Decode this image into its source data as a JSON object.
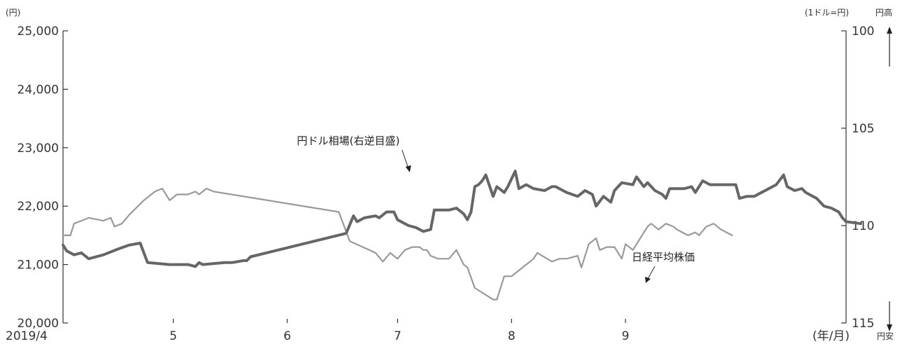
{
  "chart_data": {
    "type": "line",
    "left_unit": "(円)",
    "right_unit": "(1ドル=円)",
    "right_top_note": "円高",
    "right_bottom_note": "円安",
    "x_axis_note": "(年/月)",
    "left_axis": {
      "ylim": [
        20000,
        25000
      ],
      "ticks": [
        20000,
        21000,
        22000,
        23000,
        24000,
        25000
      ],
      "tick_labels": [
        "20,000",
        "21,000",
        "22,000",
        "23,000",
        "24,000",
        "25,000"
      ]
    },
    "right_axis": {
      "inverted": true,
      "ylim": [
        100,
        115
      ],
      "ticks": [
        100,
        105,
        110,
        115
      ],
      "tick_labels": [
        "100",
        "105",
        "110",
        "115"
      ]
    },
    "x_axis": {
      "tick_labels": [
        "2019/4",
        "5",
        "6",
        "7",
        "8",
        "9"
      ],
      "tick_dates": [
        "2019-04-01",
        "2019-05-01",
        "2019-06-01",
        "2019-07-01",
        "2019-08-01",
        "2019-09-01"
      ],
      "range": [
        "2019-04-01",
        "2019-10-31"
      ]
    },
    "series": [
      {
        "name": "円ドル相場(右逆目盛)",
        "axis": "right",
        "color": "#666666",
        "points": [
          [
            "2019-04-01",
            111.0
          ],
          [
            "2019-04-02",
            111.3
          ],
          [
            "2019-04-04",
            111.5
          ],
          [
            "2019-04-06",
            111.4
          ],
          [
            "2019-04-08",
            111.7
          ],
          [
            "2019-04-12",
            111.5
          ],
          [
            "2019-04-16",
            111.2
          ],
          [
            "2019-04-19",
            111.0
          ],
          [
            "2019-04-22",
            110.9
          ],
          [
            "2019-04-24",
            111.9
          ],
          [
            "2019-04-30",
            112.0
          ],
          [
            "2019-05-05",
            112.0
          ],
          [
            "2019-05-07",
            112.1
          ],
          [
            "2019-05-08",
            111.9
          ],
          [
            "2019-05-09",
            112.0
          ],
          [
            "2019-05-15",
            111.9
          ],
          [
            "2019-05-17",
            111.9
          ],
          [
            "2019-05-20",
            111.8
          ],
          [
            "2019-05-21",
            111.8
          ],
          [
            "2019-05-22",
            111.6
          ],
          [
            "2019-06-17",
            110.4
          ],
          [
            "2019-06-19",
            109.5
          ],
          [
            "2019-06-20",
            109.8
          ],
          [
            "2019-06-22",
            109.6
          ],
          [
            "2019-06-25",
            109.5
          ],
          [
            "2019-06-26",
            109.6
          ],
          [
            "2019-06-28",
            109.3
          ],
          [
            "2019-06-30",
            109.3
          ],
          [
            "2019-07-01",
            109.7
          ],
          [
            "2019-07-04",
            110.0
          ],
          [
            "2019-07-06",
            110.1
          ],
          [
            "2019-07-08",
            110.3
          ],
          [
            "2019-07-10",
            110.2
          ],
          [
            "2019-07-11",
            109.2
          ],
          [
            "2019-07-15",
            109.2
          ],
          [
            "2019-07-17",
            109.1
          ],
          [
            "2019-07-19",
            109.4
          ],
          [
            "2019-07-20",
            109.7
          ],
          [
            "2019-07-21",
            109.3
          ],
          [
            "2019-07-22",
            108.0
          ],
          [
            "2019-07-23",
            107.9
          ],
          [
            "2019-07-24",
            107.7
          ],
          [
            "2019-07-25",
            107.4
          ],
          [
            "2019-07-27",
            108.5
          ],
          [
            "2019-07-28",
            108.0
          ],
          [
            "2019-07-30",
            108.3
          ],
          [
            "2019-07-31",
            108.0
          ],
          [
            "2019-08-02",
            107.2
          ],
          [
            "2019-08-03",
            108.1
          ],
          [
            "2019-08-05",
            107.9
          ],
          [
            "2019-08-07",
            108.1
          ],
          [
            "2019-08-10",
            108.2
          ],
          [
            "2019-08-12",
            108.0
          ],
          [
            "2019-08-13",
            108.0
          ],
          [
            "2019-08-15",
            108.2
          ],
          [
            "2019-08-16",
            108.3
          ],
          [
            "2019-08-19",
            108.5
          ],
          [
            "2019-08-21",
            108.2
          ],
          [
            "2019-08-23",
            108.4
          ],
          [
            "2019-08-24",
            109.0
          ],
          [
            "2019-08-26",
            108.5
          ],
          [
            "2019-08-28",
            108.8
          ],
          [
            "2019-08-29",
            108.2
          ],
          [
            "2019-08-31",
            107.8
          ],
          [
            "2019-09-03",
            107.9
          ],
          [
            "2019-09-04",
            107.5
          ],
          [
            "2019-09-06",
            108.0
          ],
          [
            "2019-09-07",
            107.8
          ],
          [
            "2019-09-09",
            108.2
          ],
          [
            "2019-09-11",
            108.4
          ],
          [
            "2019-09-12",
            108.6
          ],
          [
            "2019-09-13",
            108.1
          ],
          [
            "2019-09-14",
            108.1
          ],
          [
            "2019-09-17",
            108.1
          ],
          [
            "2019-09-19",
            108.0
          ],
          [
            "2019-09-20",
            108.3
          ],
          [
            "2019-09-22",
            107.7
          ],
          [
            "2019-09-24",
            107.9
          ],
          [
            "2019-09-26",
            107.9
          ],
          [
            "2019-09-28",
            107.9
          ],
          [
            "2019-10-01",
            107.9
          ],
          [
            "2019-10-02",
            108.6
          ],
          [
            "2019-10-04",
            108.5
          ],
          [
            "2019-10-06",
            108.5
          ],
          [
            "2019-10-08",
            108.3
          ],
          [
            "2019-10-09",
            108.2
          ],
          [
            "2019-10-10",
            108.1
          ],
          [
            "2019-10-12",
            107.9
          ],
          [
            "2019-10-14",
            107.4
          ],
          [
            "2019-10-15",
            108.0
          ],
          [
            "2019-10-17",
            108.2
          ],
          [
            "2019-10-19",
            108.1
          ],
          [
            "2019-10-20",
            108.3
          ],
          [
            "2019-10-21",
            108.4
          ],
          [
            "2019-10-22",
            108.5
          ],
          [
            "2019-10-23",
            108.6
          ],
          [
            "2019-10-25",
            109.0
          ],
          [
            "2019-10-27",
            109.1
          ],
          [
            "2019-10-28",
            109.2
          ],
          [
            "2019-10-29",
            109.3
          ],
          [
            "2019-10-30",
            109.6
          ],
          [
            "2019-10-31",
            109.8
          ],
          [
            "2019-11-04",
            109.9
          ]
        ]
      },
      {
        "name": "日経平均株価",
        "axis": "left",
        "color": "#999999",
        "points": [
          [
            "2019-04-01",
            21500
          ],
          [
            "2019-04-03",
            21500
          ],
          [
            "2019-04-04",
            21700
          ],
          [
            "2019-04-06",
            21750
          ],
          [
            "2019-04-08",
            21800
          ],
          [
            "2019-04-12",
            21750
          ],
          [
            "2019-04-14",
            21800
          ],
          [
            "2019-04-15",
            21650
          ],
          [
            "2019-04-17",
            21700
          ],
          [
            "2019-04-19",
            21850
          ],
          [
            "2019-04-23",
            22100
          ],
          [
            "2019-04-26",
            22250
          ],
          [
            "2019-04-28",
            22300
          ],
          [
            "2019-04-30",
            22100
          ],
          [
            "2019-05-02",
            22200
          ],
          [
            "2019-05-05",
            22200
          ],
          [
            "2019-05-07",
            22250
          ],
          [
            "2019-05-08",
            22200
          ],
          [
            "2019-05-10",
            22300
          ],
          [
            "2019-05-12",
            22250
          ],
          [
            "2019-06-15",
            21900
          ],
          [
            "2019-06-18",
            21400
          ],
          [
            "2019-06-25",
            21200
          ],
          [
            "2019-06-27",
            21050
          ],
          [
            "2019-06-29",
            21200
          ],
          [
            "2019-07-01",
            21100
          ],
          [
            "2019-07-03",
            21250
          ],
          [
            "2019-07-05",
            21300
          ],
          [
            "2019-07-07",
            21300
          ],
          [
            "2019-07-08",
            21250
          ],
          [
            "2019-07-09",
            21250
          ],
          [
            "2019-07-10",
            21150
          ],
          [
            "2019-07-12",
            21100
          ],
          [
            "2019-07-15",
            21100
          ],
          [
            "2019-07-17",
            21250
          ],
          [
            "2019-07-19",
            21000
          ],
          [
            "2019-07-20",
            20950
          ],
          [
            "2019-07-22",
            20600
          ],
          [
            "2019-07-27",
            20400
          ],
          [
            "2019-07-28",
            20400
          ],
          [
            "2019-07-30",
            20800
          ],
          [
            "2019-08-01",
            20800
          ],
          [
            "2019-08-03",
            20900
          ],
          [
            "2019-08-05",
            21000
          ],
          [
            "2019-08-07",
            21100
          ],
          [
            "2019-08-08",
            21200
          ],
          [
            "2019-08-12",
            21050
          ],
          [
            "2019-08-14",
            21100
          ],
          [
            "2019-08-16",
            21100
          ],
          [
            "2019-08-19",
            21150
          ],
          [
            "2019-08-20",
            20950
          ],
          [
            "2019-08-22",
            21350
          ],
          [
            "2019-08-24",
            21450
          ],
          [
            "2019-08-25",
            21250
          ],
          [
            "2019-08-27",
            21300
          ],
          [
            "2019-08-29",
            21300
          ],
          [
            "2019-08-31",
            21100
          ],
          [
            "2019-09-01",
            21350
          ],
          [
            "2019-09-03",
            21250
          ],
          [
            "2019-09-07",
            21650
          ],
          [
            "2019-09-08",
            21700
          ],
          [
            "2019-09-10",
            21600
          ],
          [
            "2019-09-12",
            21700
          ],
          [
            "2019-09-14",
            21650
          ],
          [
            "2019-09-15",
            21600
          ],
          [
            "2019-09-18",
            21500
          ],
          [
            "2019-09-20",
            21550
          ],
          [
            "2019-09-21",
            21500
          ],
          [
            "2019-09-23",
            21650
          ],
          [
            "2019-09-25",
            21700
          ],
          [
            "2019-09-27",
            21600
          ],
          [
            "2019-09-30",
            21500
          ]
        ]
      }
    ],
    "annotations": [
      {
        "text": "円ドル相場(右逆目盛)",
        "series": 0
      },
      {
        "text": "日経平均株価",
        "series": 1
      }
    ]
  }
}
